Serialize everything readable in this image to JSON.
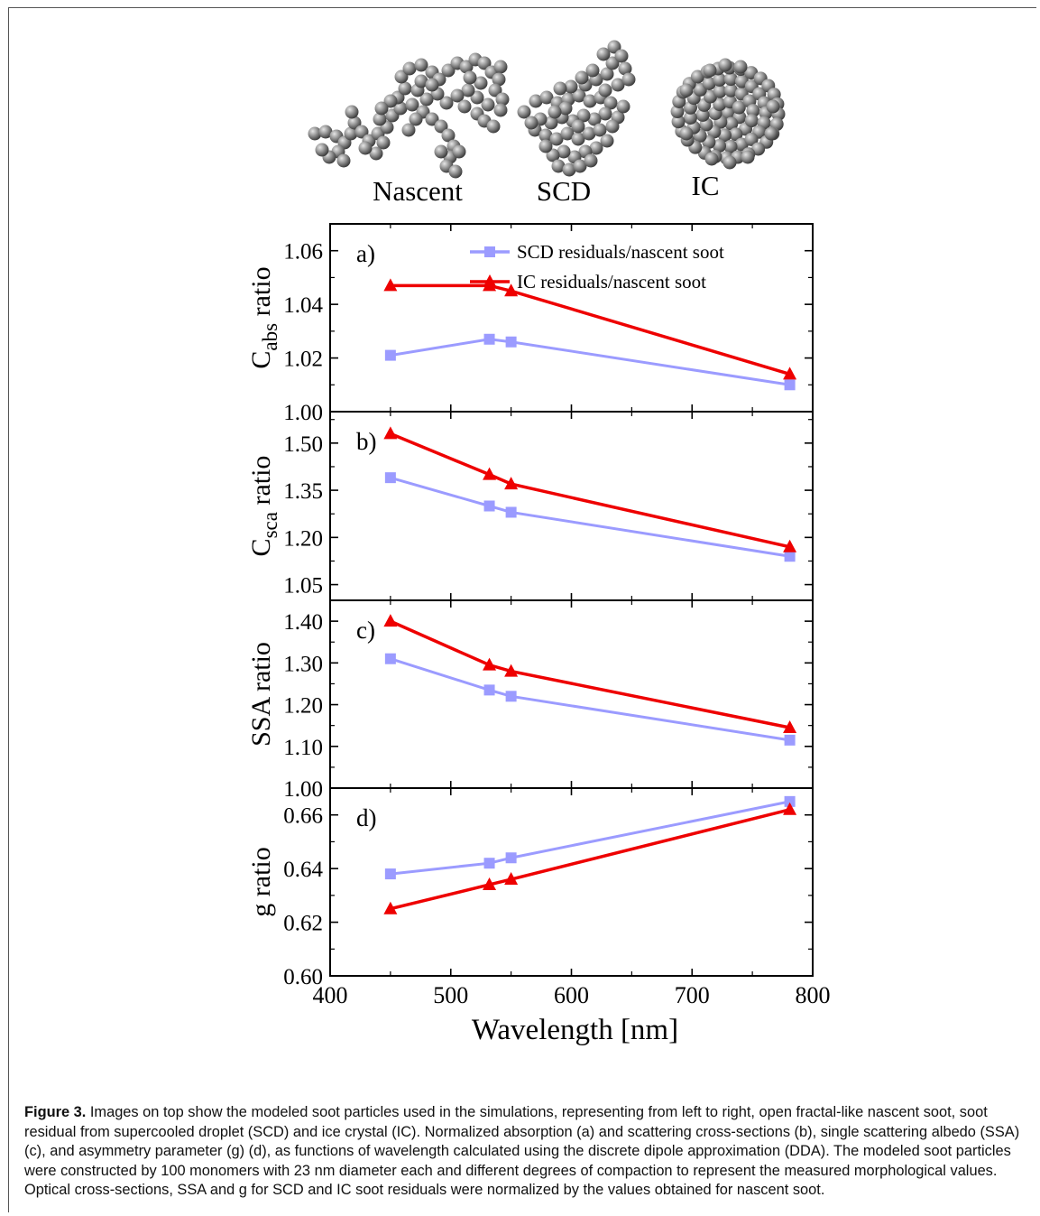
{
  "particles": {
    "labels": [
      "Nascent",
      "SCD",
      "IC"
    ]
  },
  "legend": {
    "scd": "SCD residuals/nascent soot",
    "ic": "IC residuals/nascent soot"
  },
  "colors": {
    "scd": "#9b9bff",
    "ic": "#ee0000",
    "sphere": "#8a8a8a"
  },
  "chart_data": [
    {
      "type": "line",
      "panel_label": "a)",
      "ylabel_main": "C",
      "ylabel_sub": "abs",
      "ylabel_tail": " ratio",
      "x": [
        450,
        532,
        550,
        781
      ],
      "ylim": [
        1.0,
        1.07
      ],
      "yticks": [
        1.0,
        1.02,
        1.04,
        1.06
      ],
      "yticklabels": [
        "1.00",
        "1.02",
        "1.04",
        "1.06"
      ],
      "series": [
        {
          "name": "SCD residuals/nascent soot",
          "values": [
            1.021,
            1.027,
            1.026,
            1.01
          ]
        },
        {
          "name": "IC residuals/nascent soot",
          "values": [
            1.047,
            1.047,
            1.045,
            1.014
          ]
        }
      ]
    },
    {
      "type": "line",
      "panel_label": "b)",
      "ylabel_main": "C",
      "ylabel_sub": "sca",
      "ylabel_tail": " ratio",
      "x": [
        450,
        532,
        550,
        781
      ],
      "ylim": [
        1.0,
        1.6
      ],
      "yticks": [
        1.05,
        1.2,
        1.35,
        1.5
      ],
      "yticklabels": [
        "1.05",
        "1.20",
        "1.35",
        "1.50"
      ],
      "series": [
        {
          "name": "SCD residuals/nascent soot",
          "values": [
            1.39,
            1.3,
            1.28,
            1.14
          ]
        },
        {
          "name": "IC residuals/nascent soot",
          "values": [
            1.53,
            1.4,
            1.37,
            1.17
          ]
        }
      ]
    },
    {
      "type": "line",
      "panel_label": "c)",
      "ylabel_main": "SSA ratio",
      "ylabel_sub": "",
      "ylabel_tail": "",
      "x": [
        450,
        532,
        550,
        781
      ],
      "ylim": [
        1.0,
        1.45
      ],
      "yticks": [
        1.0,
        1.1,
        1.2,
        1.3,
        1.4
      ],
      "yticklabels": [
        "1.00",
        "1.10",
        "1.20",
        "1.30",
        "1.40"
      ],
      "series": [
        {
          "name": "SCD residuals/nascent soot",
          "values": [
            1.31,
            1.235,
            1.22,
            1.115
          ]
        },
        {
          "name": "IC residuals/nascent soot",
          "values": [
            1.4,
            1.295,
            1.28,
            1.145
          ]
        }
      ]
    },
    {
      "type": "line",
      "panel_label": "d)",
      "ylabel_main": "g ratio",
      "ylabel_sub": "",
      "ylabel_tail": "",
      "xlabel": "Wavelength [nm]",
      "x": [
        450,
        532,
        550,
        781
      ],
      "xlim": [
        400,
        800
      ],
      "xticks": [
        400,
        500,
        600,
        700,
        800
      ],
      "xticklabels": [
        "400",
        "500",
        "600",
        "700",
        "800"
      ],
      "ylim": [
        0.6,
        0.67
      ],
      "yticks": [
        0.6,
        0.62,
        0.64,
        0.66
      ],
      "yticklabels": [
        "0.60",
        "0.62",
        "0.64",
        "0.66"
      ],
      "series": [
        {
          "name": "SCD residuals/nascent soot",
          "values": [
            0.638,
            0.642,
            0.644,
            0.665
          ]
        },
        {
          "name": "IC residuals/nascent soot",
          "values": [
            0.625,
            0.634,
            0.636,
            0.662
          ]
        }
      ]
    }
  ],
  "caption": {
    "label": "Figure 3.",
    "text": " Images on top show the modeled soot particles used in the simulations, representing from left to right, open fractal-like nascent soot, soot residual from supercooled droplet (SCD) and ice crystal (IC). Normalized absorption (a) and scattering cross-sections (b), single scattering albedo (SSA) (c), and asymmetry parameter (g) (d), as functions of wavelength calculated using the discrete dipole approximation (DDA). The modeled soot particles were constructed by 100 monomers with 23 nm diameter each and different degrees of compaction to represent the measured morphological values. Optical cross-sections, SSA and g for SCD and IC soot residuals were normalized by the values obtained for nascent soot."
  }
}
